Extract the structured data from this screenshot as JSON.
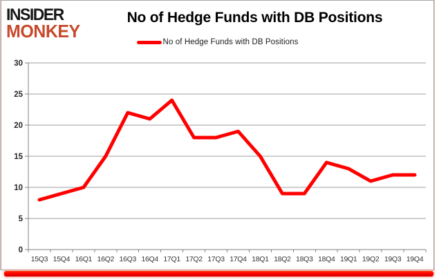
{
  "brand": {
    "line1": "INSIDER",
    "line2": "MONKEY",
    "line1_color": "#161616",
    "line2_color": "#c7492c"
  },
  "header": {
    "title": "No of Hedge Funds with DB Positions"
  },
  "legend": {
    "label": "No of Hedge Funds with DB Positions",
    "marker_color": "#ff0000"
  },
  "chart_data": {
    "type": "line",
    "title": "No of Hedge Funds with DB Positions",
    "categories": [
      "15Q3",
      "15Q4",
      "16Q1",
      "16Q2",
      "16Q3",
      "16Q4",
      "17Q1",
      "17Q2",
      "17Q3",
      "17Q4",
      "18Q1",
      "18Q2",
      "18Q3",
      "18Q4",
      "19Q1",
      "19Q2",
      "19Q3",
      "19Q4"
    ],
    "series": [
      {
        "name": "No of Hedge Funds with DB Positions",
        "color": "#ff0000",
        "values": [
          8,
          9,
          10,
          15,
          22,
          21,
          24,
          18,
          18,
          19,
          15,
          9,
          9,
          14,
          13,
          11,
          12,
          12
        ]
      }
    ],
    "xlabel": "",
    "ylabel": "",
    "ylim": [
      0,
      30
    ],
    "ytick_step": 5,
    "grid": true,
    "legend_position": "top-center"
  },
  "colors": {
    "gridline": "#9d9d9d",
    "axis": "#808080",
    "y_tick_label": "#262626",
    "x_tick_label": "#333333",
    "background": "#ffffff",
    "accent_bottom_bar": "#ff0000"
  }
}
